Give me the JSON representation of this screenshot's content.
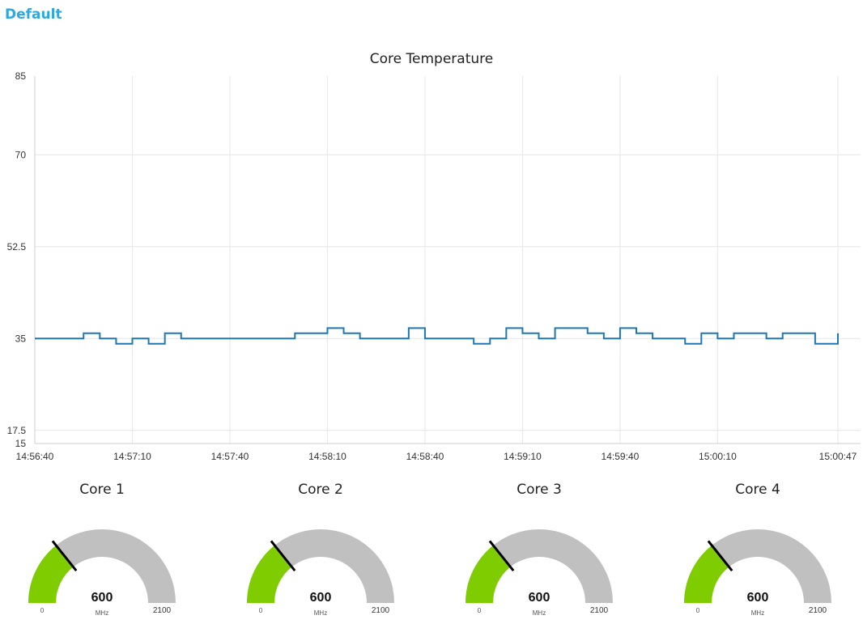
{
  "header": {
    "title": "Default"
  },
  "chart_data": {
    "type": "line",
    "title": "Core Temperature",
    "xlabel": "",
    "ylabel": "",
    "step": true,
    "grid": true,
    "ylim": [
      15,
      85
    ],
    "y_ticks": [
      "85",
      "70",
      "52.5",
      "35",
      "17.5",
      "15"
    ],
    "x_ticks": [
      "14:56:40",
      "14:57:10",
      "14:57:40",
      "14:58:10",
      "14:58:40",
      "14:59:10",
      "14:59:40",
      "15:00:10",
      "15:00:47"
    ],
    "x_start_seconds": 0,
    "x_end_seconds": 247,
    "series": [
      {
        "color": "#1f77b4",
        "x": [
          0,
          15,
          20,
          25,
          30,
          35,
          40,
          45,
          50,
          60,
          75,
          80,
          90,
          95,
          100,
          115,
          120,
          125,
          130,
          135,
          140,
          145,
          150,
          155,
          160,
          165,
          170,
          175,
          180,
          185,
          190,
          195,
          200,
          205,
          210,
          215,
          220,
          225,
          230,
          235,
          240,
          245,
          247
        ],
        "y": [
          35,
          36,
          35,
          34,
          35,
          34,
          36,
          35,
          35,
          35,
          35,
          36,
          37,
          36,
          35,
          37,
          35,
          35,
          35,
          34,
          35,
          37,
          36,
          35,
          37,
          37,
          36,
          35,
          37,
          36,
          35,
          35,
          34,
          36,
          35,
          36,
          36,
          35,
          36,
          36,
          34,
          34,
          36
        ]
      }
    ]
  },
  "gauges": [
    {
      "title": "Core 1",
      "value": "600",
      "units": "MHz",
      "min": "0",
      "max": "2100",
      "fill_color": "#7fcc00",
      "track_color": "#c0c0c0"
    },
    {
      "title": "Core 2",
      "value": "600",
      "units": "MHz",
      "min": "0",
      "max": "2100",
      "fill_color": "#7fcc00",
      "track_color": "#c0c0c0"
    },
    {
      "title": "Core 3",
      "value": "600",
      "units": "MHz",
      "min": "0",
      "max": "2100",
      "fill_color": "#7fcc00",
      "track_color": "#c0c0c0"
    },
    {
      "title": "Core 4",
      "value": "600",
      "units": "MHz",
      "min": "0",
      "max": "2100",
      "fill_color": "#7fcc00",
      "track_color": "#c0c0c0"
    }
  ]
}
